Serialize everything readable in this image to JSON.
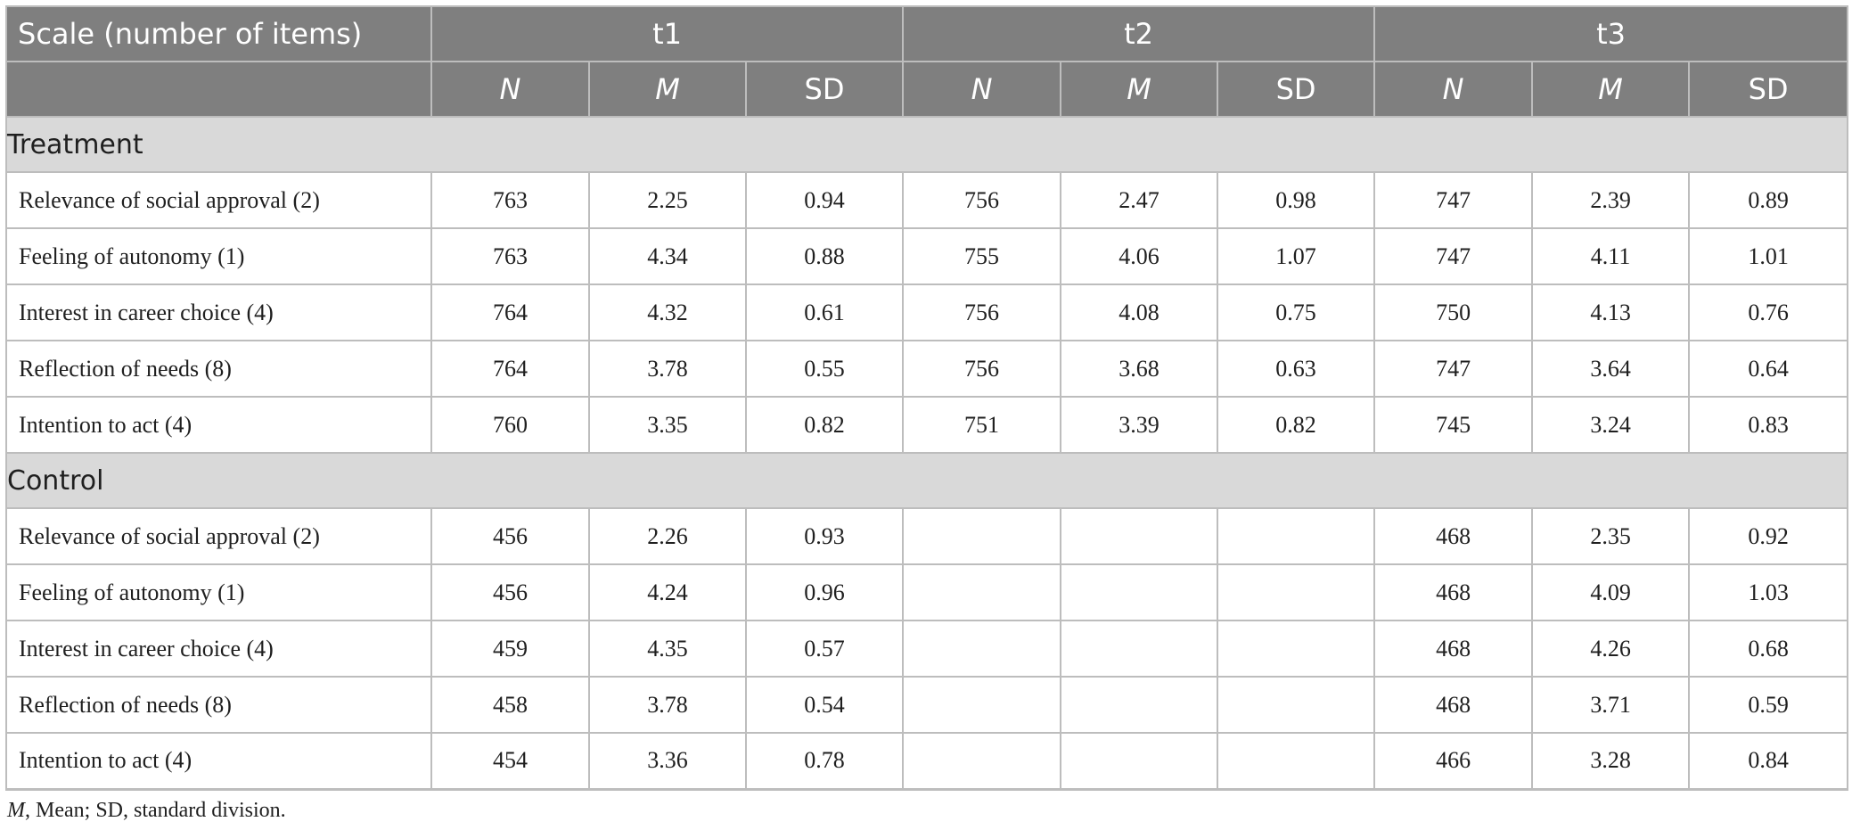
{
  "table": {
    "header": {
      "scale_label": "Scale (number of items)",
      "times": [
        "t1",
        "t2",
        "t3"
      ],
      "stats": [
        "N",
        "M",
        "SD"
      ]
    },
    "groups": [
      {
        "name": "Treatment",
        "rows": [
          {
            "label": "Relevance of social approval (2)",
            "cells": [
              "763",
              "2.25",
              "0.94",
              "756",
              "2.47",
              "0.98",
              "747",
              "2.39",
              "0.89"
            ]
          },
          {
            "label": "Feeling of autonomy (1)",
            "cells": [
              "763",
              "4.34",
              "0.88",
              "755",
              "4.06",
              "1.07",
              "747",
              "4.11",
              "1.01"
            ]
          },
          {
            "label": "Interest in career choice (4)",
            "cells": [
              "764",
              "4.32",
              "0.61",
              "756",
              "4.08",
              "0.75",
              "750",
              "4.13",
              "0.76"
            ]
          },
          {
            "label": "Reflection of needs (8)",
            "cells": [
              "764",
              "3.78",
              "0.55",
              "756",
              "3.68",
              "0.63",
              "747",
              "3.64",
              "0.64"
            ]
          },
          {
            "label": "Intention to act (4)",
            "cells": [
              "760",
              "3.35",
              "0.82",
              "751",
              "3.39",
              "0.82",
              "745",
              "3.24",
              "0.83"
            ]
          }
        ]
      },
      {
        "name": "Control",
        "rows": [
          {
            "label": "Relevance of social approval (2)",
            "cells": [
              "456",
              "2.26",
              "0.93",
              "",
              "",
              "",
              "468",
              "2.35",
              "0.92"
            ]
          },
          {
            "label": "Feeling of autonomy (1)",
            "cells": [
              "456",
              "4.24",
              "0.96",
              "",
              "",
              "",
              "468",
              "4.09",
              "1.03"
            ]
          },
          {
            "label": "Interest in career choice (4)",
            "cells": [
              "459",
              "4.35",
              "0.57",
              "",
              "",
              "",
              "468",
              "4.26",
              "0.68"
            ]
          },
          {
            "label": "Reflection of needs (8)",
            "cells": [
              "458",
              "3.78",
              "0.54",
              "",
              "",
              "",
              "468",
              "3.71",
              "0.59"
            ]
          },
          {
            "label": "Intention to act (4)",
            "cells": [
              "454",
              "3.36",
              "0.78",
              "",
              "",
              "",
              "466",
              "3.28",
              "0.84"
            ]
          }
        ]
      }
    ]
  },
  "footnote": {
    "abbr": "M",
    "text": ", Mean; SD, standard division."
  },
  "colors": {
    "header_bg": "#7f7f7f",
    "group_bg": "#d9d9d9",
    "border": "#bdbdbd"
  }
}
